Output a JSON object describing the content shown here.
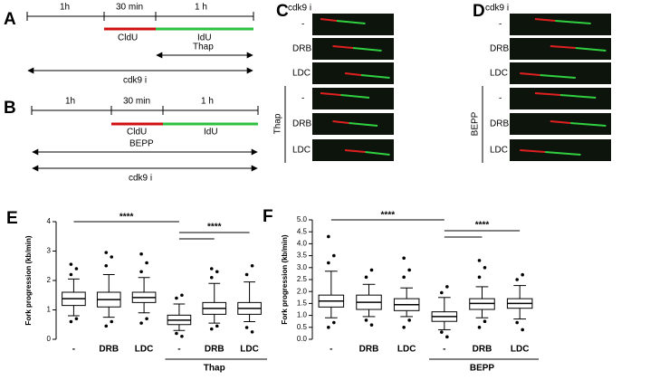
{
  "panels": {
    "A": {
      "letter": "A",
      "durations": [
        "1h",
        "30 min",
        "1 h"
      ],
      "labels": [
        "CldU",
        "IdU"
      ],
      "treatment": "Thap",
      "inhibitor": "cdk9 i"
    },
    "B": {
      "letter": "B",
      "durations": [
        "1h",
        "30 min",
        "1 h"
      ],
      "labels": [
        "CldU",
        "IdU"
      ],
      "treatment": "BEPP",
      "inhibitor": "cdk9 i"
    },
    "C": {
      "letter": "C",
      "header": "cdk9 i",
      "rows": [
        "-",
        "DRB",
        "LDC",
        "-",
        "DRB",
        "LDC"
      ],
      "group": "Thap"
    },
    "D": {
      "letter": "D",
      "header": "cdk9 i",
      "rows": [
        "-",
        "DRB",
        "LDC",
        "-",
        "DRB",
        "LDC"
      ],
      "group": "BEPP"
    }
  },
  "chart_data": [
    {
      "type": "box",
      "letter": "E",
      "ylabel": "Fork progression (kb/min)",
      "categories": [
        "-",
        "DRB",
        "LDC",
        "-",
        "DRB",
        "LDC"
      ],
      "group": "Thap",
      "significance": [
        "****",
        "****"
      ],
      "ylim": [
        0,
        4
      ],
      "yticks": [
        0,
        1,
        2,
        3,
        4
      ],
      "boxes": [
        {
          "whislo": 0.8,
          "q1": 1.15,
          "med": 1.38,
          "q3": 1.6,
          "whishi": 2.05,
          "fliers": [
            2.2,
            2.4,
            2.55,
            0.7,
            0.6
          ]
        },
        {
          "whislo": 0.75,
          "q1": 1.1,
          "med": 1.35,
          "q3": 1.6,
          "whishi": 2.2,
          "fliers": [
            2.5,
            2.8,
            2.95,
            0.6,
            0.45
          ]
        },
        {
          "whislo": 0.9,
          "q1": 1.25,
          "med": 1.42,
          "q3": 1.6,
          "whishi": 2.1,
          "fliers": [
            2.3,
            2.6,
            2.9,
            0.7,
            0.55
          ]
        },
        {
          "whislo": 0.3,
          "q1": 0.5,
          "med": 0.65,
          "q3": 0.82,
          "whishi": 1.2,
          "fliers": [
            1.4,
            1.5,
            0.2,
            0.1
          ]
        },
        {
          "whislo": 0.55,
          "q1": 0.85,
          "med": 1.05,
          "q3": 1.25,
          "whishi": 1.9,
          "fliers": [
            2.1,
            2.3,
            2.4,
            0.45,
            0.35
          ]
        },
        {
          "whislo": 0.6,
          "q1": 0.85,
          "med": 1.05,
          "q3": 1.25,
          "whishi": 1.95,
          "fliers": [
            2.2,
            2.5,
            0.4,
            0.25
          ]
        }
      ]
    },
    {
      "type": "box",
      "letter": "F",
      "ylabel": "Fork progression (kb/min)",
      "categories": [
        "-",
        "DRB",
        "LDC",
        "-",
        "DRB",
        "LDC"
      ],
      "group": "BEPP",
      "significance": [
        "****",
        "****"
      ],
      "ylim": [
        0,
        5
      ],
      "yticks": [
        {
          "value": 0,
          "label": "0.0"
        },
        {
          "value": 0.5,
          "label": "0.5"
        },
        {
          "value": 1,
          "label": "1.0"
        },
        {
          "value": 1.5,
          "label": "1.5"
        },
        {
          "value": 2,
          "label": "2.0"
        },
        {
          "value": 2.5,
          "label": "2.5"
        },
        {
          "value": 3,
          "label": "3.0"
        },
        {
          "value": 3.5,
          "label": "3.5"
        },
        {
          "value": 4,
          "label": "4.0"
        },
        {
          "value": 4.5,
          "label": "4.5"
        },
        {
          "value": 5,
          "label": "5.0"
        }
      ],
      "boxes": [
        {
          "whislo": 0.9,
          "q1": 1.35,
          "med": 1.6,
          "q3": 1.85,
          "whishi": 2.85,
          "fliers": [
            3.2,
            3.5,
            4.3,
            0.7,
            0.5
          ]
        },
        {
          "whislo": 0.95,
          "q1": 1.25,
          "med": 1.55,
          "q3": 1.85,
          "whishi": 2.3,
          "fliers": [
            2.6,
            2.9,
            0.8,
            0.6
          ]
        },
        {
          "whislo": 0.95,
          "q1": 1.2,
          "med": 1.45,
          "q3": 1.7,
          "whishi": 2.15,
          "fliers": [
            2.6,
            2.9,
            3.4,
            0.8,
            0.5
          ]
        },
        {
          "whislo": 0.4,
          "q1": 0.75,
          "med": 0.95,
          "q3": 1.15,
          "whishi": 1.75,
          "fliers": [
            1.95,
            2.2,
            0.3,
            0.1
          ]
        },
        {
          "whislo": 0.9,
          "q1": 1.25,
          "med": 1.5,
          "q3": 1.7,
          "whishi": 2.2,
          "fliers": [
            2.6,
            3.0,
            3.3,
            0.75,
            0.5
          ]
        },
        {
          "whislo": 0.85,
          "q1": 1.3,
          "med": 1.5,
          "q3": 1.7,
          "whishi": 2.25,
          "fliers": [
            2.5,
            2.7,
            0.7,
            0.4
          ]
        }
      ]
    }
  ]
}
